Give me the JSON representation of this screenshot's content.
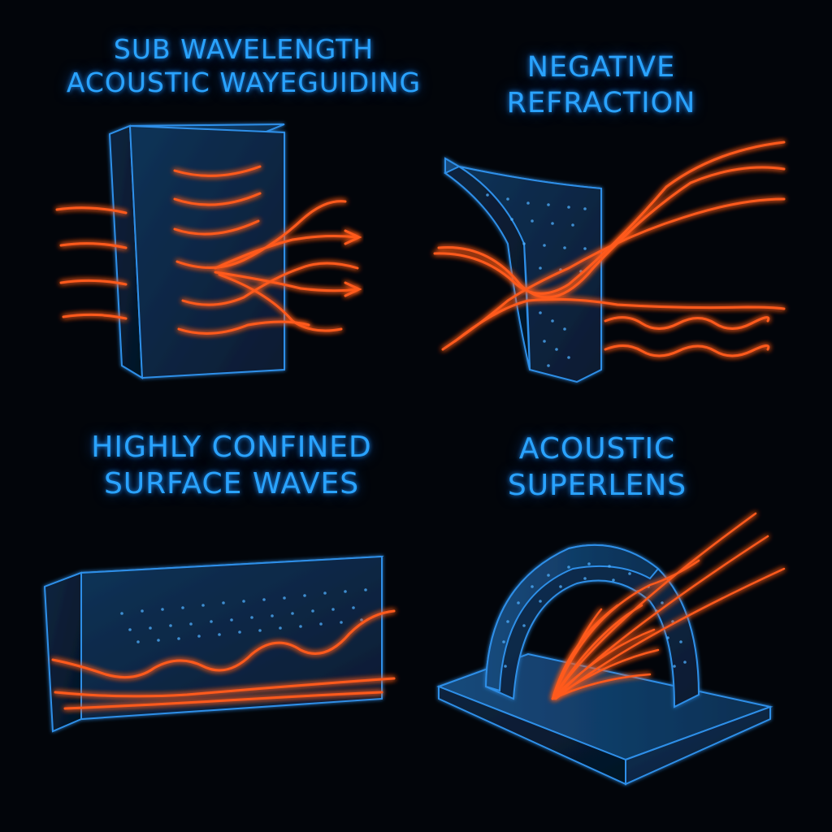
{
  "panels": {
    "waveguiding": {
      "title_line1": "SUB WAVELENGTH",
      "title_line2": "ACOUSTIC WAYEGUIDING"
    },
    "refraction": {
      "title_line1": "NEGATIVE",
      "title_line2": "REFRACTION"
    },
    "surface": {
      "title_line1": "HIGHLY CONFINED",
      "title_line2": "SURFACE WAVES"
    },
    "superlens": {
      "title_line1": "ACOUSTIC",
      "title_line2": "SUPERLENS"
    }
  },
  "colors": {
    "background": "#02050a",
    "title_blue": "#2aa3ff",
    "structure_edge": "#2f8fe8",
    "structure_fill": "#0b2744",
    "wave_orange": "#ff5a1f",
    "wave_core": "#ffb070"
  }
}
